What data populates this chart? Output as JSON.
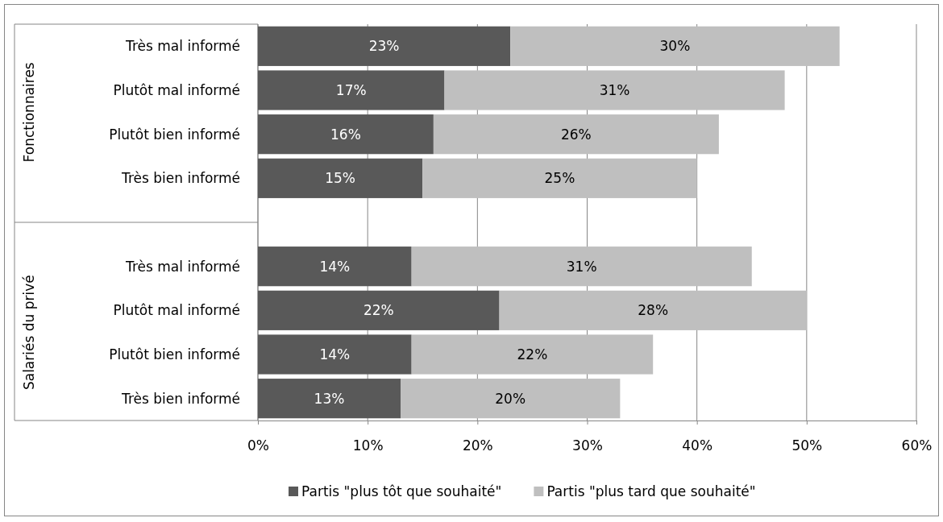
{
  "chart_data": {
    "type": "bar",
    "orientation": "horizontal",
    "stacked": true,
    "categories": [
      "Très mal informé",
      "Plutôt mal informé",
      "Plutôt bien informé",
      "Très bien informé",
      null,
      "Très mal informé",
      "Plutôt mal informé",
      "Plutôt bien informé",
      "Très bien informé"
    ],
    "series": [
      {
        "name": "Partis \"plus tôt que souhaité\"",
        "color": "#595959",
        "values": [
          23,
          17,
          16,
          15,
          null,
          14,
          22,
          14,
          13
        ],
        "value_labels": [
          "23%",
          "17%",
          "16%",
          "15%",
          null,
          "14%",
          "22%",
          "14%",
          "13%"
        ]
      },
      {
        "name": "Partis \"plus tard que souhaité\"",
        "color": "#bfbfbf",
        "values": [
          30,
          31,
          26,
          25,
          null,
          31,
          28,
          22,
          20
        ],
        "value_labels": [
          "30%",
          "31%",
          "26%",
          "25%",
          null,
          "31%",
          "28%",
          "22%",
          "20%"
        ]
      }
    ],
    "xlim": [
      0,
      60
    ],
    "xticks": [
      {
        "value": 0,
        "label": "0%"
      },
      {
        "value": 10,
        "label": "10%"
      },
      {
        "value": 20,
        "label": "20%"
      },
      {
        "value": 30,
        "label": "30%"
      },
      {
        "value": 40,
        "label": "40%"
      },
      {
        "value": 50,
        "label": "50%"
      },
      {
        "value": 60,
        "label": "60%"
      }
    ],
    "grid": "x",
    "legend": "bottom",
    "annotations": [
      "Fonctionnaires",
      "Salariés du privé"
    ]
  }
}
